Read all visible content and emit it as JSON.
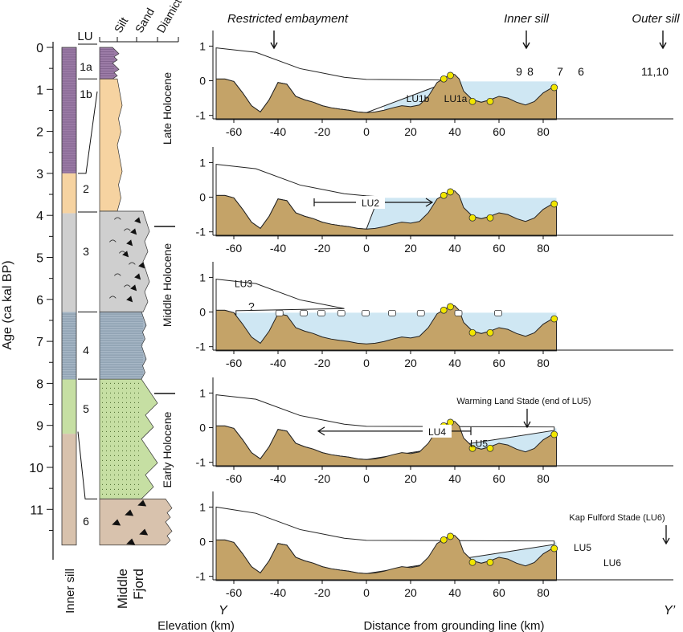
{
  "age_axis": {
    "label": "Age (ca kal BP)",
    "ticks": [
      "0",
      "1",
      "2",
      "3",
      "4",
      "5",
      "6",
      "7",
      "8",
      "9",
      "10",
      "11"
    ]
  },
  "columns": {
    "lu_header": "LU",
    "grain_labels": [
      "Silt",
      "Sand",
      "Diamict"
    ],
    "inner_sill_label": "Inner sill",
    "middle_fjord_label_1": "Middle",
    "middle_fjord_label_2": "Fjord",
    "units": [
      {
        "label": "1a",
        "top": 0,
        "bottom": 0.75,
        "color": "#9b7ba6"
      },
      {
        "label": "1b",
        "top": 0.75,
        "bottom": 3.0,
        "color": "#9b7ba6"
      },
      {
        "label": "2",
        "top": 3.0,
        "bottom": 3.95,
        "color": "#f6d3a1"
      },
      {
        "label": "3",
        "top": 3.95,
        "bottom": 6.3,
        "color": "#cfcfcf"
      },
      {
        "label": "4",
        "top": 6.3,
        "bottom": 7.9,
        "color": "#a7b7c6"
      },
      {
        "label": "5",
        "top": 7.9,
        "bottom": 9.2,
        "color": "#c6dfa3"
      },
      {
        "label": "6",
        "top": 9.2,
        "bottom": 11.85,
        "color": "#d8c2ad"
      }
    ]
  },
  "periods": [
    "Late Holocene",
    "Middle Holocene",
    "Early Holocene"
  ],
  "elevation_label": "Elevation (km)",
  "distance_label": "Distance from grounding line (km)",
  "transect_start": "Y",
  "transect_end": "Y’",
  "x_ticks": [
    "-60",
    "-40",
    "-20",
    "0",
    "20",
    "40",
    "60",
    "80"
  ],
  "y_ticks": [
    "1",
    "0",
    "-1"
  ],
  "panels": [
    {
      "ice_front": 35,
      "water_from": 8,
      "annotations": {
        "restricted": "Restricted embayment",
        "inner_sill": "Inner sill",
        "outer_sill": "Outer sill",
        "core_labels": [
          "9",
          "8",
          "7",
          "6",
          "11,10"
        ],
        "lu1b": "LU1b",
        "lu1a": "LU1a"
      }
    },
    {
      "ice_front": 5,
      "water_from": -68,
      "annotations": {
        "lu2": "LU2"
      }
    },
    {
      "ice_front": -59,
      "water_from": -68,
      "annotations": {
        "lu3": "LU3",
        "question": "?"
      }
    },
    {
      "ice_front": 85,
      "water_from": 28,
      "annotations": {
        "lu4": "LU4",
        "lu5": "LU5",
        "stade": "Warming Land Stade (end of LU5)"
      }
    },
    {
      "ice_front": 85,
      "water_from": 42,
      "annotations": {
        "lu5": "LU5",
        "lu6": "LU6",
        "stade": "Kap Fulford Stade (LU6)"
      }
    }
  ],
  "colors": {
    "bedrock": "#c4a368",
    "water": "#cfe7f3",
    "ice": "#ffffff",
    "core_marker": "#f2e600",
    "question": "#d63b2a"
  }
}
